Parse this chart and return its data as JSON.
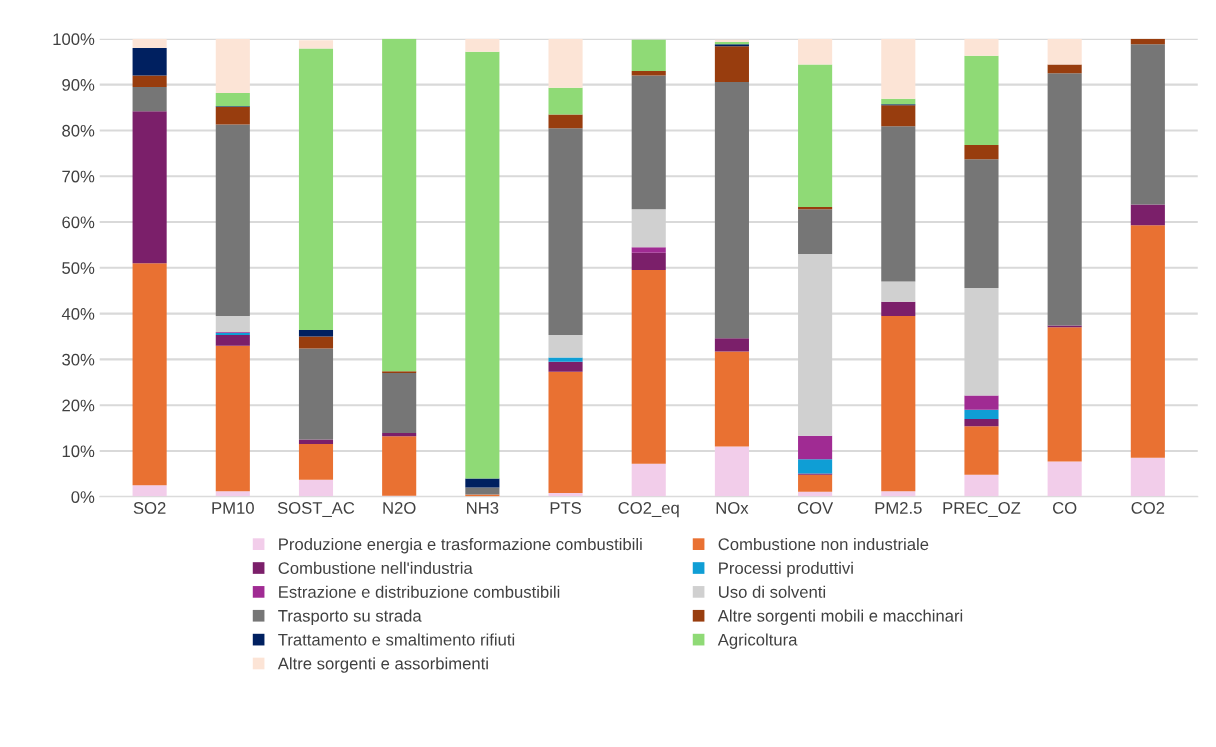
{
  "chart_data": {
    "type": "bar",
    "stacked": true,
    "categories": [
      "SO2",
      "PM10",
      "SOST_AC",
      "N2O",
      "NH3",
      "PTS",
      "CO2_eq",
      "NOx",
      "COV",
      "PM2.5",
      "PREC_OZ",
      "CO",
      "CO2"
    ],
    "series": [
      {
        "name": "Produzione energia e trasformazione combustibili",
        "color": "#f2cdea",
        "values": [
          2.5,
          1.2,
          3.7,
          0.2,
          0,
          0.8,
          7.2,
          11,
          1.1,
          1.2,
          4.8,
          7.7,
          8.5
        ]
      },
      {
        "name": "Combustione non industriale",
        "color": "#e97132",
        "values": [
          48.5,
          31.8,
          7.8,
          13,
          0.5,
          26.5,
          42.3,
          20.7,
          3.7,
          38.3,
          10.6,
          29.3,
          50.8
        ]
      },
      {
        "name": "Combustione nell'industria",
        "color": "#7b1f6a",
        "values": [
          33.2,
          2.3,
          1.0,
          0.7,
          0,
          2.2,
          3.8,
          2.9,
          0.3,
          3.1,
          1.6,
          0.4,
          4.5
        ]
      },
      {
        "name": "Processi produttivi",
        "color": "#0f9ed5",
        "values": [
          0,
          0.5,
          0,
          0,
          0,
          0.9,
          0,
          0,
          3.1,
          0,
          2.0,
          0,
          0
        ]
      },
      {
        "name": "Estrazione e distribuzione combustibili",
        "color": "#a02b93",
        "values": [
          0,
          0.2,
          0,
          0,
          0,
          0,
          1.2,
          0,
          5.1,
          0,
          3.1,
          0,
          0
        ]
      },
      {
        "name": "Uso di solventi",
        "color": "#d0d0d0",
        "values": [
          0,
          3.5,
          null,
          0,
          0,
          4.9,
          8.3,
          null,
          39.7,
          4.4,
          23.5,
          0,
          0
        ]
      },
      {
        "name": "Trasporto su strada",
        "color": "#767676",
        "values": [
          5.3,
          41.8,
          19.9,
          13.1,
          1.5,
          45.2,
          29.2,
          56,
          9.8,
          33.9,
          28.1,
          55.1,
          35
        ]
      },
      {
        "name": "Altre sorgenti mobili e macchinari",
        "color": "#983d0e",
        "values": [
          2.5,
          3.8,
          2.6,
          0.4,
          0,
          3.0,
          1.0,
          7.8,
          0.5,
          4.6,
          3.1,
          1.9,
          1.2
        ]
      },
      {
        "name": "Trattamento e smaltimento rifiuti",
        "color": "#002060",
        "values": [
          6,
          0.2,
          1.4,
          0,
          2,
          0,
          0,
          0.4,
          0,
          0.2,
          0,
          0,
          0
        ]
      },
      {
        "name": "Agricoltura",
        "color": "#8fda76",
        "values": [
          0,
          2.9,
          61.5,
          72.6,
          93.2,
          5.8,
          6.8,
          0.5,
          31.1,
          1.2,
          19.5,
          0,
          0
        ]
      },
      {
        "name": "Altre sorgenti e assorbimenti",
        "color": "#fce4d6",
        "values": [
          2,
          11.8,
          1.8,
          0,
          2.8,
          10.7,
          null,
          0.5,
          5.6,
          13.1,
          3.7,
          5.6,
          0
        ]
      }
    ],
    "ylim": [
      0,
      100
    ],
    "yticks": [
      {
        "value": 0,
        "label": "0%"
      },
      {
        "value": 10,
        "label": "10%"
      },
      {
        "value": 20,
        "label": "20%"
      },
      {
        "value": 30,
        "label": "30%"
      },
      {
        "value": 40,
        "label": "40%"
      },
      {
        "value": 50,
        "label": "50%"
      },
      {
        "value": 60,
        "label": "60%"
      },
      {
        "value": 70,
        "label": "70%"
      },
      {
        "value": 80,
        "label": "80%"
      },
      {
        "value": 90,
        "label": "90%"
      },
      {
        "value": 100,
        "label": "100%"
      }
    ],
    "grid": "y",
    "legend": "bottom"
  }
}
